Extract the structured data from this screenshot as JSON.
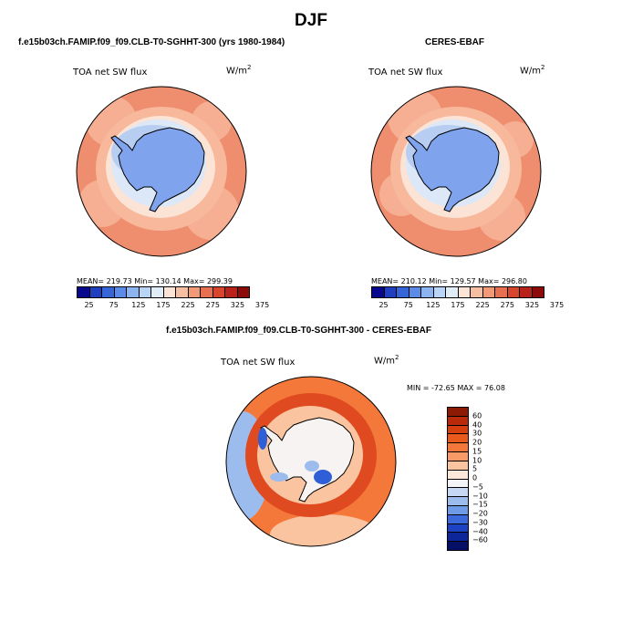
{
  "title": "DJF",
  "panels": [
    {
      "header": "f.e15b03ch.FAMIP.f09_f09.CLB-T0-SGHHT-300 (yrs 1980-1984)",
      "plot_label": "TOA net SW flux",
      "units": "W/m",
      "units_exp": "2",
      "stats": "MEAN= 219.73  Min= 130.14  Max= 299.39"
    },
    {
      "header": "CERES-EBAF",
      "plot_label": "TOA net SW flux",
      "units": "W/m",
      "units_exp": "2",
      "stats": "MEAN= 210.12  Min= 129.57  Max= 296.80"
    },
    {
      "header": "f.e15b03ch.FAMIP.f09_f09.CLB-T0-SGHHT-300 - CERES-EBAF",
      "plot_label": "TOA net SW flux",
      "units": "W/m",
      "units_exp": "2",
      "stats": "MIN = -72.65  MAX = 76.08"
    }
  ],
  "colorbar_main": {
    "ticks": [
      "25",
      "75",
      "125",
      "175",
      "225",
      "275",
      "325",
      "375"
    ],
    "colors": [
      "#08088c",
      "#1f3fbf",
      "#3565d6",
      "#5b8be6",
      "#8bb4f0",
      "#b8d4f6",
      "#e0ecf8",
      "#fbe4d6",
      "#f6bfa3",
      "#f09a78",
      "#e6704f",
      "#d6452c",
      "#b8221a",
      "#8c0a0a"
    ]
  },
  "colorbar_diff": {
    "ticks": [
      "60",
      "40",
      "30",
      "20",
      "15",
      "10",
      "5",
      "0",
      "−5",
      "−10",
      "−15",
      "−20",
      "−30",
      "−40",
      "−60"
    ],
    "colors": [
      "#8c1a05",
      "#b82a0a",
      "#d6400f",
      "#ea5a1c",
      "#f4783a",
      "#f89a68",
      "#fbc4a0",
      "#fde8da",
      "#f4f4f8",
      "#c6d8f4",
      "#9cbcee",
      "#6e9ae6",
      "#3c6adc",
      "#1e42c4",
      "#0d269a",
      "#050f66"
    ]
  },
  "map_colors": {
    "ocean_high": "#ef8e6e",
    "ocean_mid": "#f7b89c",
    "ring_light": "#fbe4d6",
    "ring_pale": "#dce7f7",
    "sea_ice": "#b7cdf1",
    "antarctica": "#7fa3ec",
    "diff_pos_strong": "#e04a20",
    "diff_pos": "#f4783a",
    "diff_pos_weak": "#fbc4a0",
    "diff_neutral": "#f7f3f2",
    "diff_neg": "#9cbcee",
    "diff_neg_strong": "#2f5fd6"
  }
}
